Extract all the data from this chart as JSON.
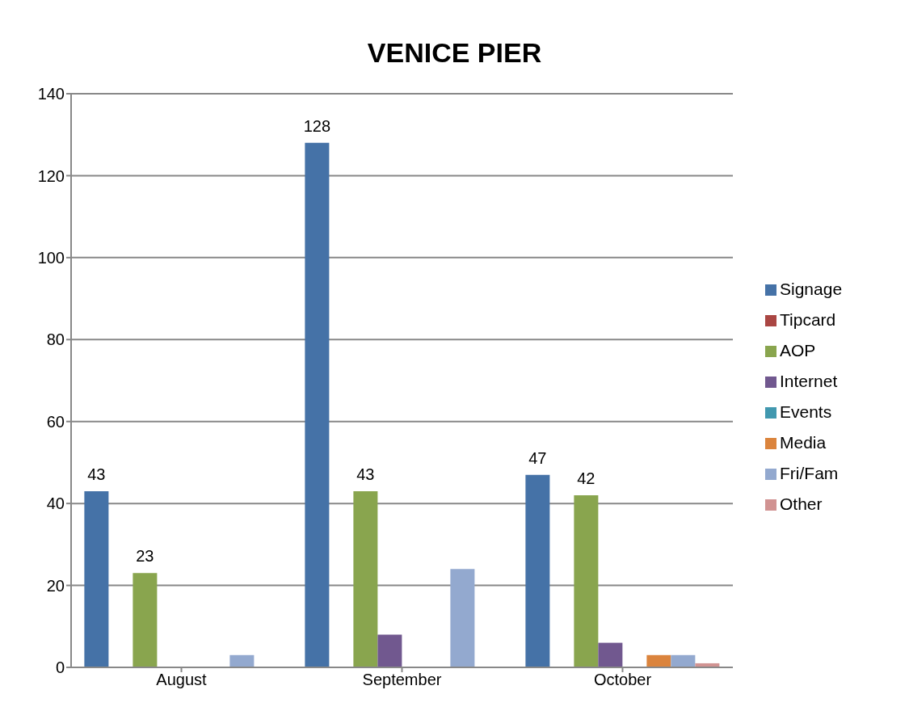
{
  "chart_data": {
    "type": "bar",
    "title": "VENICE PIER",
    "categories": [
      "August",
      "September",
      "October"
    ],
    "series": [
      {
        "name": "Signage",
        "color": "#4572a7",
        "values": [
          43,
          128,
          47
        ],
        "value_labels": [
          "43",
          "128",
          "47"
        ]
      },
      {
        "name": "Tipcard",
        "color": "#aa4643",
        "values": [
          0,
          0,
          0
        ]
      },
      {
        "name": "AOP",
        "color": "#89a54e",
        "values": [
          23,
          43,
          42
        ],
        "value_labels": [
          "23",
          "43",
          "42"
        ]
      },
      {
        "name": "Internet",
        "color": "#71588f",
        "values": [
          0,
          8,
          6
        ]
      },
      {
        "name": "Events",
        "color": "#4198af",
        "values": [
          0,
          0,
          0
        ]
      },
      {
        "name": "Media",
        "color": "#db843d",
        "values": [
          0,
          0,
          3
        ]
      },
      {
        "name": "Fri/Fam",
        "color": "#93a9cf",
        "values": [
          3,
          24,
          3
        ]
      },
      {
        "name": "Other",
        "color": "#d19392",
        "values": [
          0,
          0,
          1
        ]
      }
    ],
    "ylim": [
      0,
      140
    ],
    "yticks": [
      0,
      20,
      40,
      60,
      80,
      100,
      120,
      140
    ],
    "grid": "y",
    "legend": "right"
  }
}
